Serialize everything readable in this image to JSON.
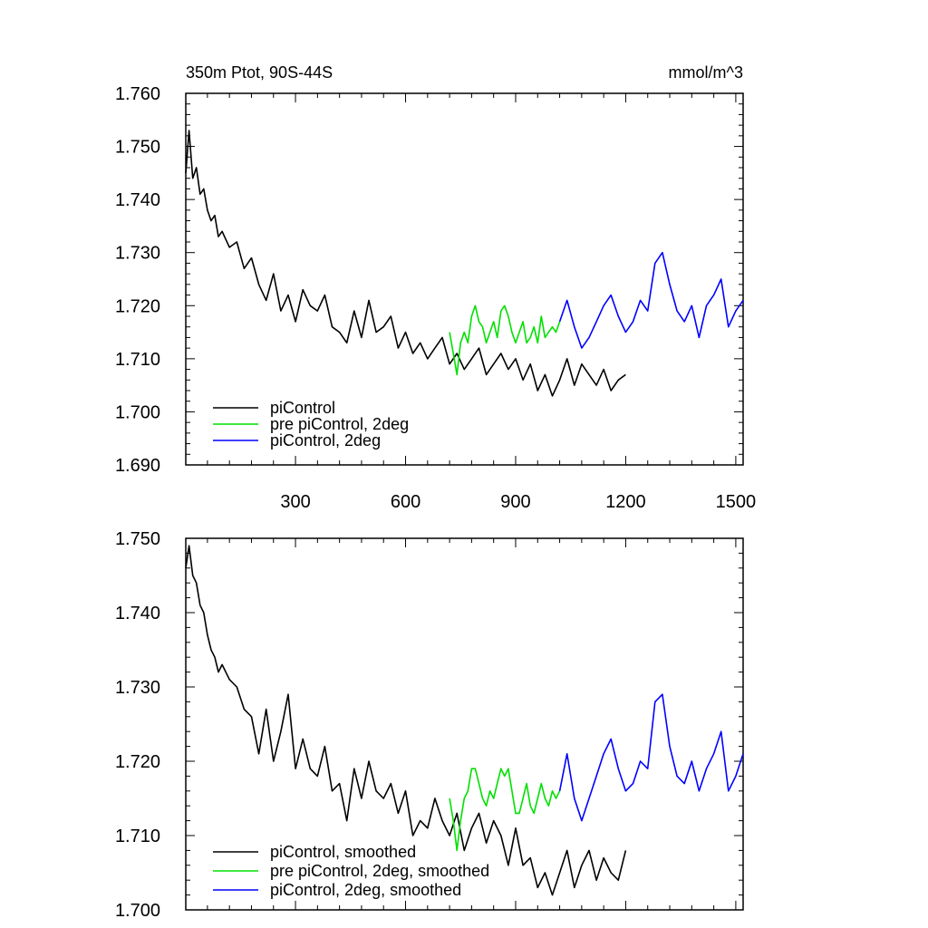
{
  "chart_data": [
    {
      "type": "line",
      "title_left": "350m Ptot, 90S-44S",
      "title_right": "mmol/m^3",
      "xlim": [
        1,
        1520
      ],
      "ylim": [
        1.69,
        1.76
      ],
      "xticks": [
        300,
        600,
        900,
        1200,
        1500
      ],
      "xtick_labels": [
        "300",
        "600",
        "900",
        "1200",
        "1500"
      ],
      "yticks": [
        1.69,
        1.7,
        1.71,
        1.72,
        1.73,
        1.74,
        1.75,
        1.76
      ],
      "ytick_labels": [
        "1.690",
        "1.700",
        "1.710",
        "1.720",
        "1.730",
        "1.740",
        "1.750",
        "1.760"
      ],
      "grid": false,
      "legend_position": "bottom-left",
      "series": [
        {
          "name": "piControl",
          "color": "#000000",
          "x": [
            1,
            10,
            20,
            30,
            40,
            50,
            60,
            70,
            80,
            90,
            100,
            120,
            140,
            160,
            180,
            200,
            220,
            240,
            260,
            280,
            300,
            320,
            340,
            360,
            380,
            400,
            420,
            440,
            460,
            480,
            500,
            520,
            540,
            560,
            580,
            600,
            620,
            640,
            660,
            680,
            700,
            720,
            740,
            760,
            780,
            800,
            820,
            840,
            860,
            880,
            900,
            920,
            940,
            960,
            980,
            1000,
            1020,
            1040,
            1060,
            1080,
            1100,
            1120,
            1140,
            1160,
            1180,
            1200
          ],
          "y": [
            1.745,
            1.753,
            1.744,
            1.746,
            1.741,
            1.742,
            1.738,
            1.736,
            1.737,
            1.733,
            1.734,
            1.731,
            1.732,
            1.727,
            1.729,
            1.724,
            1.721,
            1.726,
            1.719,
            1.722,
            1.717,
            1.723,
            1.72,
            1.719,
            1.722,
            1.716,
            1.715,
            1.713,
            1.719,
            1.714,
            1.721,
            1.715,
            1.716,
            1.718,
            1.712,
            1.715,
            1.711,
            1.713,
            1.71,
            1.712,
            1.714,
            1.709,
            1.711,
            1.708,
            1.71,
            1.712,
            1.707,
            1.709,
            1.711,
            1.708,
            1.71,
            1.706,
            1.709,
            1.704,
            1.707,
            1.703,
            1.706,
            1.71,
            1.705,
            1.709,
            1.707,
            1.705,
            1.708,
            1.704,
            1.706,
            1.707
          ]
        },
        {
          "name": "pre piControl, 2deg",
          "color": "#00e000",
          "x": [
            720,
            730,
            740,
            750,
            760,
            770,
            780,
            790,
            800,
            810,
            820,
            830,
            840,
            850,
            860,
            870,
            880,
            890,
            900,
            910,
            920,
            930,
            940,
            950,
            960,
            970,
            980,
            990,
            1000,
            1010,
            1020
          ],
          "y": [
            1.715,
            1.711,
            1.707,
            1.713,
            1.715,
            1.713,
            1.718,
            1.72,
            1.717,
            1.716,
            1.713,
            1.715,
            1.717,
            1.714,
            1.719,
            1.72,
            1.718,
            1.715,
            1.713,
            1.715,
            1.717,
            1.713,
            1.714,
            1.716,
            1.713,
            1.718,
            1.714,
            1.715,
            1.716,
            1.715,
            1.717
          ]
        },
        {
          "name": "piControl, 2deg",
          "color": "#0000ff",
          "x": [
            1020,
            1040,
            1060,
            1080,
            1100,
            1120,
            1140,
            1160,
            1180,
            1200,
            1220,
            1240,
            1260,
            1280,
            1300,
            1320,
            1340,
            1360,
            1380,
            1400,
            1420,
            1440,
            1460,
            1480,
            1500,
            1520
          ],
          "y": [
            1.717,
            1.721,
            1.716,
            1.712,
            1.714,
            1.717,
            1.72,
            1.722,
            1.718,
            1.715,
            1.717,
            1.721,
            1.719,
            1.728,
            1.73,
            1.724,
            1.719,
            1.717,
            1.72,
            1.714,
            1.72,
            1.722,
            1.725,
            1.716,
            1.719,
            1.721
          ]
        }
      ]
    },
    {
      "type": "line",
      "xlim": [
        1,
        1520
      ],
      "ylim": [
        1.7,
        1.75
      ],
      "xticks": [
        300,
        600,
        900,
        1200,
        1500
      ],
      "xtick_labels": [],
      "yticks": [
        1.7,
        1.71,
        1.72,
        1.73,
        1.74,
        1.75
      ],
      "ytick_labels": [
        "1.700",
        "1.710",
        "1.720",
        "1.730",
        "1.740",
        "1.750"
      ],
      "grid": false,
      "legend_position": "bottom-left",
      "series": [
        {
          "name": "piControl, smoothed",
          "color": "#000000",
          "x": [
            1,
            10,
            20,
            30,
            40,
            50,
            60,
            70,
            80,
            90,
            100,
            120,
            140,
            160,
            180,
            200,
            220,
            240,
            260,
            280,
            300,
            320,
            340,
            360,
            380,
            400,
            420,
            440,
            460,
            480,
            500,
            520,
            540,
            560,
            580,
            600,
            620,
            640,
            660,
            680,
            700,
            720,
            740,
            760,
            780,
            800,
            820,
            840,
            860,
            880,
            900,
            920,
            940,
            960,
            980,
            1000,
            1020,
            1040,
            1060,
            1080,
            1100,
            1120,
            1140,
            1160,
            1180,
            1200
          ],
          "y": [
            1.746,
            1.749,
            1.745,
            1.744,
            1.741,
            1.74,
            1.737,
            1.735,
            1.734,
            1.732,
            1.733,
            1.731,
            1.73,
            1.727,
            1.726,
            1.721,
            1.727,
            1.72,
            1.724,
            1.729,
            1.719,
            1.723,
            1.719,
            1.718,
            1.722,
            1.716,
            1.717,
            1.712,
            1.719,
            1.715,
            1.72,
            1.716,
            1.715,
            1.717,
            1.713,
            1.716,
            1.71,
            1.712,
            1.711,
            1.715,
            1.712,
            1.71,
            1.713,
            1.708,
            1.711,
            1.713,
            1.709,
            1.712,
            1.71,
            1.706,
            1.711,
            1.706,
            1.707,
            1.703,
            1.705,
            1.702,
            1.705,
            1.708,
            1.703,
            1.706,
            1.708,
            1.704,
            1.707,
            1.705,
            1.704,
            1.708
          ]
        },
        {
          "name": "pre piControl, 2deg, smoothed",
          "color": "#00e000",
          "x": [
            720,
            730,
            740,
            750,
            760,
            770,
            780,
            790,
            800,
            810,
            820,
            830,
            840,
            850,
            860,
            870,
            880,
            890,
            900,
            910,
            920,
            930,
            940,
            950,
            960,
            970,
            980,
            990,
            1000,
            1010,
            1020
          ],
          "y": [
            1.715,
            1.712,
            1.708,
            1.712,
            1.715,
            1.716,
            1.719,
            1.719,
            1.717,
            1.715,
            1.714,
            1.716,
            1.715,
            1.717,
            1.719,
            1.718,
            1.719,
            1.716,
            1.713,
            1.713,
            1.715,
            1.717,
            1.714,
            1.713,
            1.715,
            1.717,
            1.715,
            1.714,
            1.716,
            1.715,
            1.716
          ]
        },
        {
          "name": "piControl, 2deg, smoothed",
          "color": "#0000ff",
          "x": [
            1020,
            1040,
            1060,
            1080,
            1100,
            1120,
            1140,
            1160,
            1180,
            1200,
            1220,
            1240,
            1260,
            1280,
            1300,
            1320,
            1340,
            1360,
            1380,
            1400,
            1420,
            1440,
            1460,
            1480,
            1500,
            1520
          ],
          "y": [
            1.716,
            1.721,
            1.715,
            1.712,
            1.715,
            1.718,
            1.721,
            1.723,
            1.719,
            1.716,
            1.717,
            1.72,
            1.719,
            1.728,
            1.729,
            1.722,
            1.718,
            1.717,
            1.72,
            1.716,
            1.719,
            1.721,
            1.724,
            1.716,
            1.718,
            1.721
          ]
        }
      ]
    }
  ]
}
